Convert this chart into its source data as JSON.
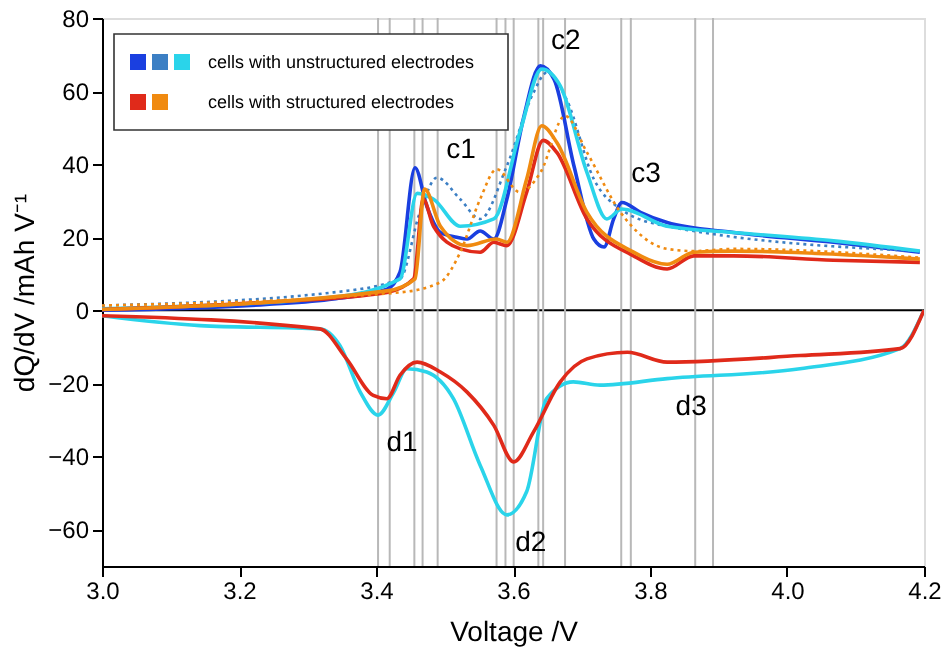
{
  "chart_data": {
    "type": "line",
    "xlabel": "Voltage /V",
    "ylabel": "dQ/dV /mAh V⁻¹",
    "xlim": [
      3.0,
      4.2
    ],
    "ylim": [
      -70,
      80
    ],
    "xticks": [
      {
        "value": 3.0,
        "label": "3.0"
      },
      {
        "value": 3.2,
        "label": "3.2"
      },
      {
        "value": 3.4,
        "label": "3.4"
      },
      {
        "value": 3.6,
        "label": "3.6"
      },
      {
        "value": 3.8,
        "label": "3.8"
      },
      {
        "value": 4.0,
        "label": "4.0"
      },
      {
        "value": 4.2,
        "label": "4.2"
      }
    ],
    "yticks": [
      -60,
      -40,
      -20,
      0,
      20,
      40,
      60,
      80
    ],
    "grid": false,
    "legend": "top left",
    "marker": "none",
    "series": [
      {
        "color": "#1a3fe0",
        "line_style": "solid",
        "x": [
          3.0,
          3.24,
          3.338,
          3.416,
          3.435,
          3.457,
          3.474,
          3.494,
          3.518,
          3.533,
          3.552,
          3.572,
          3.591,
          3.615,
          3.64,
          3.66,
          3.689,
          3.718,
          3.733,
          3.747,
          3.759,
          3.786,
          3.825,
          3.922,
          4.068,
          4.194
        ],
        "values": [
          0,
          1.6,
          3.1,
          5.8,
          10.4,
          39,
          28.6,
          21.3,
          20,
          19.5,
          21.7,
          19.5,
          30.4,
          52.3,
          66.9,
          63.2,
          39.5,
          19.5,
          17.3,
          25,
          29.5,
          26.8,
          24,
          21.3,
          18.6,
          15.9
        ]
      },
      {
        "color": "#3c7fc4",
        "line_style": "dotted",
        "x": [
          3.0,
          3.338,
          3.435,
          3.464,
          3.489,
          3.523,
          3.552,
          3.591,
          3.63,
          3.649,
          3.678,
          3.718,
          3.757,
          3.825,
          4.194
        ],
        "values": [
          1.3,
          4.9,
          8.6,
          26.8,
          36.3,
          30.4,
          25,
          39.5,
          59.6,
          65,
          57.8,
          35.9,
          27.7,
          23,
          16.2
        ]
      },
      {
        "name": "cells with unstructured electrodes",
        "color": "#2ad4ea",
        "line_style": "solid",
        "x": [
          3.0,
          3.338,
          3.435,
          3.46,
          3.484,
          3.523,
          3.572,
          3.61,
          3.642,
          3.669,
          3.708,
          3.737,
          3.759,
          3.825,
          3.922,
          4.068,
          4.194
        ],
        "values": [
          0.4,
          3.6,
          8.6,
          32,
          30.4,
          23,
          25,
          48.7,
          66,
          61.4,
          37.7,
          25,
          27.7,
          23,
          21.3,
          19,
          16.2
        ]
      },
      {
        "color": "#e02a1a",
        "line_style": "solid",
        "x": [
          3.0,
          3.24,
          3.416,
          3.455,
          3.469,
          3.484,
          3.523,
          3.552,
          3.572,
          3.591,
          3.62,
          3.644,
          3.664,
          3.708,
          3.776,
          3.825,
          3.864,
          3.922,
          4.068,
          4.194
        ],
        "values": [
          0.2,
          2.2,
          4.9,
          8.6,
          30.4,
          23,
          16.8,
          15.9,
          18.6,
          17.7,
          32.3,
          46.5,
          43.2,
          25,
          14.9,
          11.3,
          14.9,
          14.9,
          13.7,
          13.1
        ]
      },
      {
        "color": "#f08a10",
        "line_style": "dotted",
        "x": [
          3.0,
          3.435,
          3.494,
          3.523,
          3.552,
          3.576,
          3.61,
          3.64,
          3.676,
          3.708,
          3.757,
          3.825,
          3.864,
          3.922,
          4.194
        ],
        "values": [
          1.3,
          4.9,
          7.7,
          15.9,
          30.4,
          38.6,
          32.3,
          37.7,
          53.2,
          43.2,
          26.8,
          16.8,
          16.2,
          16.8,
          14.4
        ]
      },
      {
        "name": "cells with structured electrodes",
        "color": "#f08a10",
        "line_style": "solid",
        "x": [
          3.0,
          3.416,
          3.457,
          3.471,
          3.494,
          3.533,
          3.576,
          3.591,
          3.62,
          3.642,
          3.664,
          3.708,
          3.776,
          3.825,
          3.864,
          3.922,
          4.194
        ],
        "values": [
          0.2,
          5.3,
          8.6,
          33.2,
          23,
          17.7,
          19.5,
          18.6,
          35.9,
          50.5,
          45.9,
          26.8,
          15.9,
          12.6,
          15.9,
          16.2,
          14.0
        ]
      },
      {
        "color": "#2ad4ea",
        "line_style": "solid",
        "x": [
          3.0,
          3.143,
          3.318,
          3.347,
          3.377,
          3.403,
          3.426,
          3.445,
          3.474,
          3.513,
          3.552,
          3.591,
          3.62,
          3.649,
          3.688,
          3.727,
          3.825,
          4.019,
          4.165,
          4.2
        ],
        "values": [
          -1.5,
          -4.2,
          -5.1,
          -9.6,
          -22.4,
          -28.7,
          -22.4,
          -16,
          -16.9,
          -24.2,
          -42.4,
          -56,
          -49.6,
          -24.2,
          -19.6,
          -20.5,
          -18.7,
          -16,
          -10.5,
          0
        ]
      },
      {
        "color": "#e02a1a",
        "line_style": "solid",
        "x": [
          3.0,
          3.318,
          3.357,
          3.396,
          3.416,
          3.435,
          3.46,
          3.494,
          3.533,
          3.572,
          3.601,
          3.63,
          3.669,
          3.708,
          3.767,
          3.825,
          4.019,
          4.165,
          4.2
        ],
        "values": [
          -1.5,
          -5.1,
          -13.3,
          -23.3,
          -24.2,
          -17.8,
          -14.2,
          -16.9,
          -22.4,
          -31.5,
          -41.5,
          -33.3,
          -19.6,
          -13.3,
          -11.5,
          -14.2,
          -12.4,
          -10.5,
          0
        ]
      }
    ],
    "ref_lines": [
      {
        "axis": "y",
        "value": 0,
        "color": "#000000"
      },
      {
        "axis": "x",
        "value": 3.403,
        "color": "#b8b8b8"
      },
      {
        "axis": "x",
        "value": 3.42,
        "color": "#b8b8b8"
      },
      {
        "axis": "x",
        "value": 3.456,
        "color": "#b8b8b8"
      },
      {
        "axis": "x",
        "value": 3.468,
        "color": "#b8b8b8"
      },
      {
        "axis": "x",
        "value": 3.49,
        "color": "#b8b8b8"
      },
      {
        "axis": "x",
        "value": 3.576,
        "color": "#b8b8b8"
      },
      {
        "axis": "x",
        "value": 3.589,
        "color": "#b8b8b8"
      },
      {
        "axis": "x",
        "value": 3.601,
        "color": "#b8b8b8"
      },
      {
        "axis": "x",
        "value": 3.637,
        "color": "#b8b8b8"
      },
      {
        "axis": "x",
        "value": 3.644,
        "color": "#b8b8b8"
      },
      {
        "axis": "x",
        "value": 3.676,
        "color": "#b8b8b8"
      },
      {
        "axis": "x",
        "value": 3.758,
        "color": "#b8b8b8"
      },
      {
        "axis": "x",
        "value": 3.772,
        "color": "#b8b8b8"
      },
      {
        "axis": "x",
        "value": 3.866,
        "color": "#b8b8b8"
      },
      {
        "axis": "x",
        "value": 3.892,
        "color": "#b8b8b8"
      }
    ],
    "annotations": [
      {
        "text": "c1",
        "x": 3.489,
        "y": 36.3
      },
      {
        "text": "c2",
        "x": 3.642,
        "y": 66
      },
      {
        "text": "c3",
        "x": 3.759,
        "y": 29.5
      },
      {
        "text": "d1",
        "x": 3.403,
        "y": -28.7
      },
      {
        "text": "d2",
        "x": 3.591,
        "y": -56
      },
      {
        "text": "d3",
        "x": 3.825,
        "y": -18.7
      }
    ]
  }
}
